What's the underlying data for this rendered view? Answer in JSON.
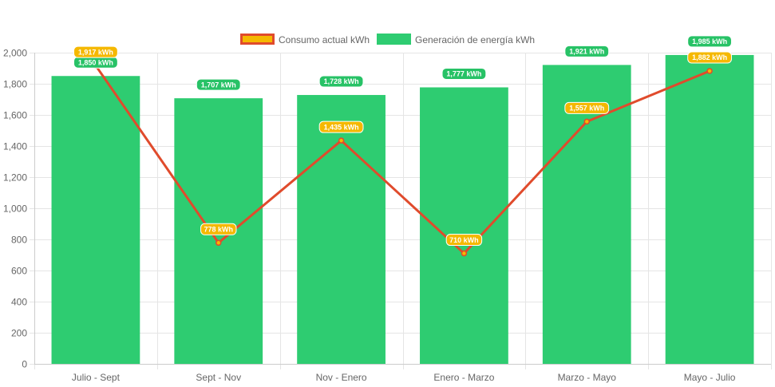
{
  "chart_data": {
    "type": "bar",
    "title": "",
    "xlabel": "",
    "ylabel": "",
    "ylim": [
      0,
      2000
    ],
    "yticks": [
      0,
      200,
      400,
      600,
      800,
      1000,
      1200,
      1400,
      1600,
      1800,
      2000
    ],
    "ytick_labels": [
      "0",
      "200",
      "400",
      "600",
      "800",
      "1,000",
      "1,200",
      "1,400",
      "1,600",
      "1,800",
      "2,000"
    ],
    "grid": true,
    "legend_position": "top-center",
    "categories": [
      "Julio - Sept",
      "Sept - Nov",
      "Nov - Enero",
      "Enero - Marzo",
      "Marzo - Mayo",
      "Mayo - Julio"
    ],
    "series": [
      {
        "name": "Consumo actual kWh",
        "type": "line",
        "values": [
          1917,
          778,
          1435,
          710,
          1557,
          1882
        ],
        "labels": [
          "1,917 kWh",
          "778 kWh",
          "1,435 kWh",
          "710 kWh",
          "1,557 kWh",
          "1,882 kWh"
        ],
        "color": "#e04b2c",
        "legend_fill": "#f5b800",
        "label_bg": "#f5b800"
      },
      {
        "name": "Generación de energía kWh",
        "type": "bar",
        "values": [
          1850,
          1707,
          1728,
          1777,
          1921,
          1985
        ],
        "labels": [
          "1,850 kWh",
          "1,707 kWh",
          "1,728 kWh",
          "1,777 kWh",
          "1,921 kWh",
          "1,985 kWh"
        ],
        "color": "#2ecc71",
        "label_bg": "#27c266"
      }
    ]
  }
}
